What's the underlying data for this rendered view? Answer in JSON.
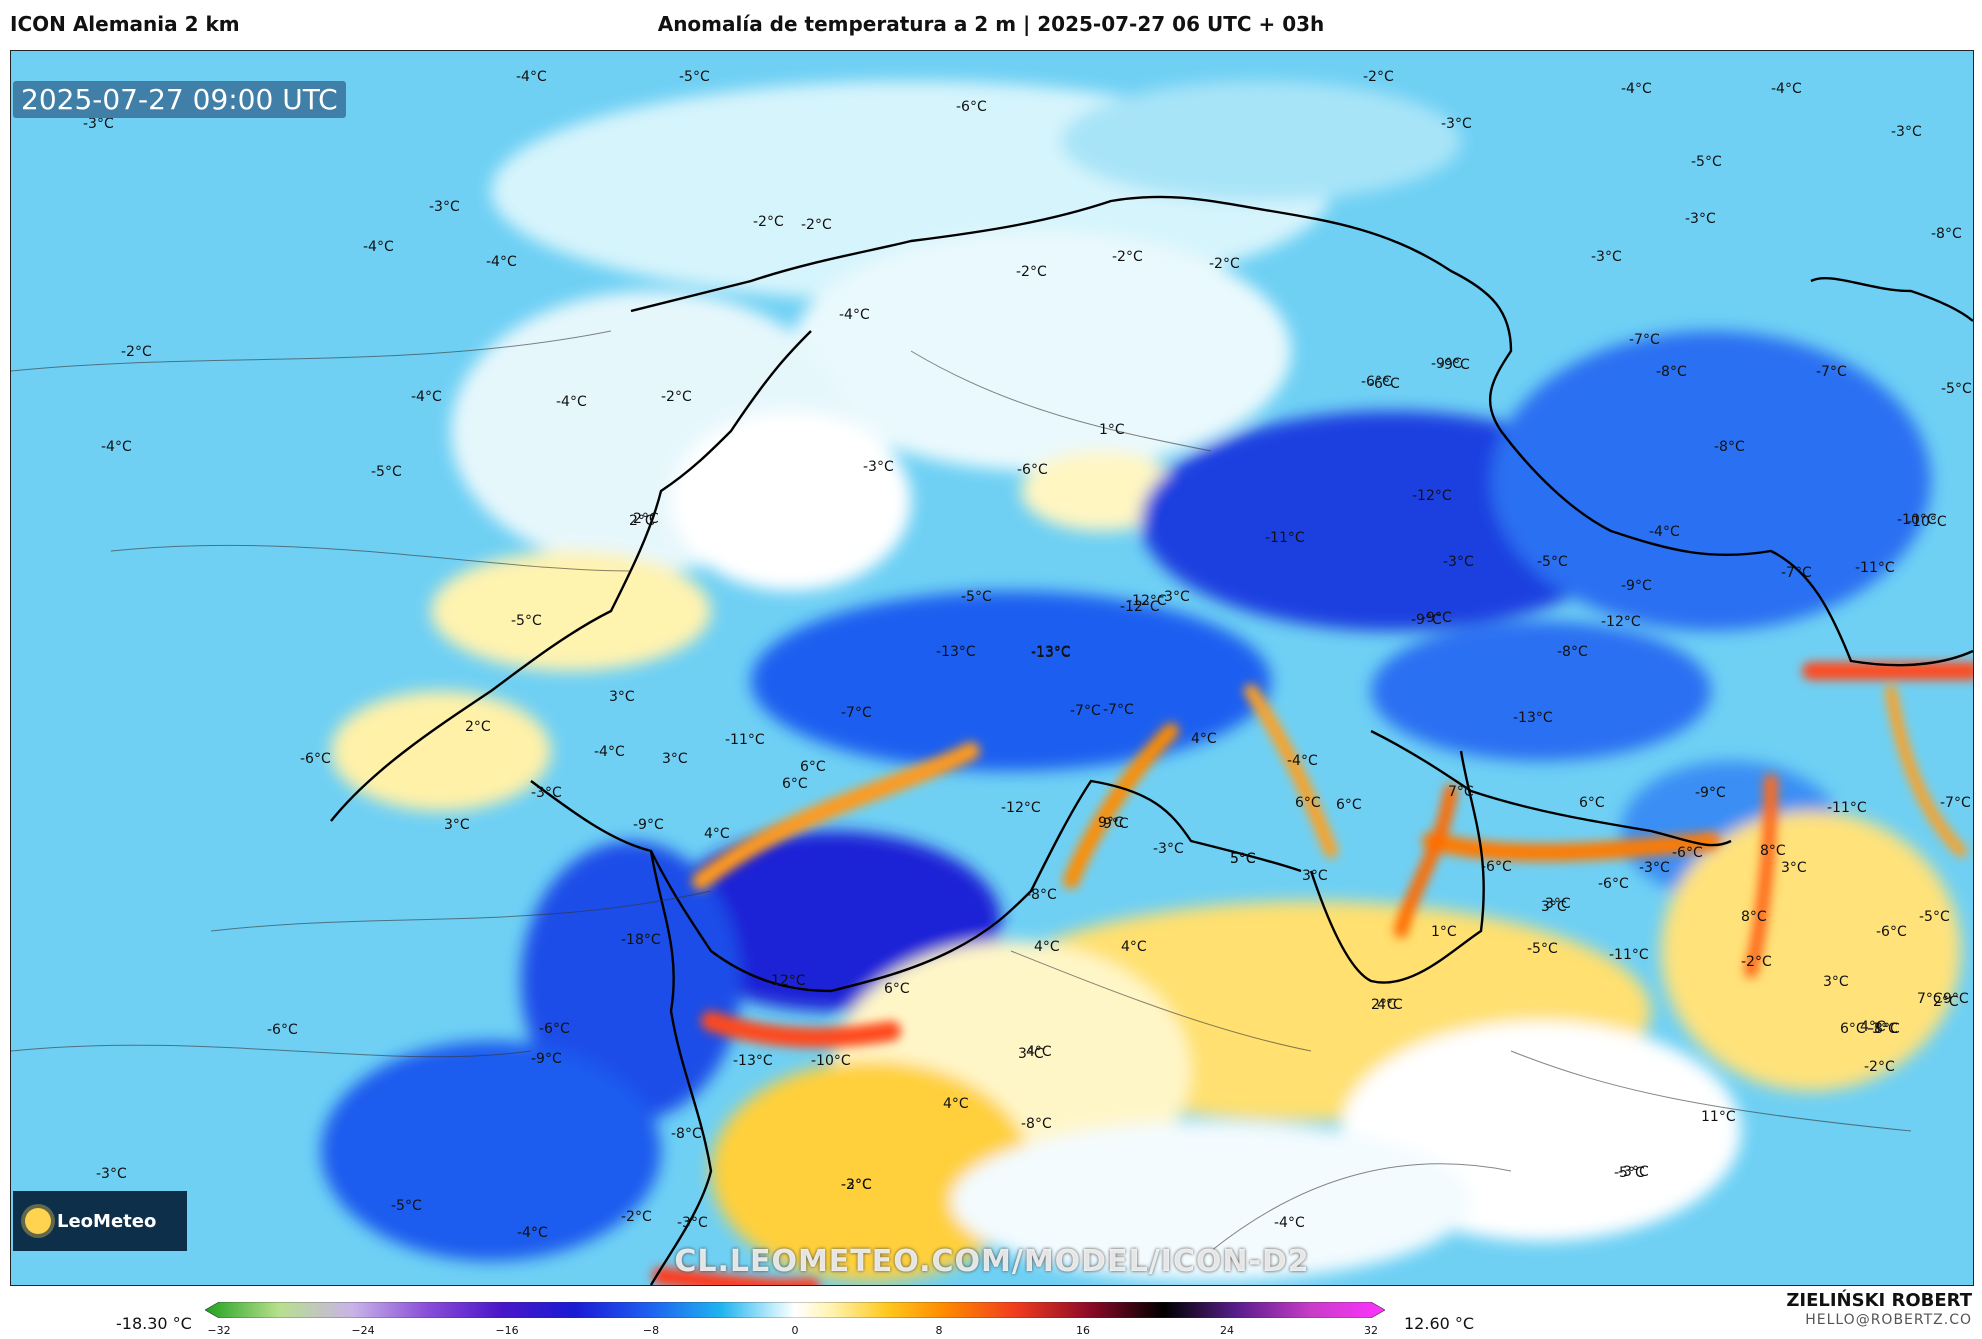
{
  "header": {
    "model": "ICON Alemania 2 km",
    "title": "Anomalía de temperatura a 2 m | 2025-07-27 06 UTC + 03h"
  },
  "map": {
    "timestamp": "2025-07-27 09:00 UTC",
    "logo_text": "LeoMeteo",
    "watermark": "CL.LEOMETEO.COM/MODEL/ICON-D2",
    "labels": [
      "-4°C",
      "-5°C",
      "-3°C",
      "-6°C",
      "-4°C",
      "-2°C",
      "-3°C",
      "-4°C",
      "-9°C",
      "-3°C",
      "-2°C",
      "-3°C",
      "-4°C",
      "-2°C",
      "-2°C",
      "-2°C",
      "-4°C",
      "-6°C",
      "-5°C",
      "-4°C",
      "-3°C",
      "-2°C",
      "-2°C",
      "-3°C",
      "-6°C",
      "-9°C",
      "-7°C",
      "-8°C",
      "-7°C",
      "-8°C",
      "-4°C",
      "-4°C",
      "-4°C",
      "1°C",
      "-8°C",
      "-5°C",
      "-3°C",
      "-5°C",
      "-12°C",
      "-11°C",
      "-10°C",
      "-2°C",
      "2°C",
      "-6°C",
      "-12°C",
      "-13°C",
      "-9°C",
      "-5°C",
      "-9°C",
      "-7°C",
      "-3°C",
      "-5°C",
      "-3°C",
      "-4°C",
      "-11°C",
      "-10°C",
      "-8°C",
      "-9°C",
      "-12°C",
      "-13°C",
      "-11°C",
      "-7°C",
      "6°C",
      "9°C",
      "-7°C",
      "-4°C",
      "5°C",
      "4°C",
      "3°C",
      "2°C",
      "2°C",
      "-6°C",
      "3°C",
      "-4°C",
      "-3°C",
      "6°C",
      "4°C",
      "-12°C",
      "-9°C",
      "-7°C",
      "6°C",
      "6°C",
      "7°C",
      "6°C",
      "-9°C",
      "-11°C",
      "-7°C",
      "3°C",
      "-5°C",
      "-13°C",
      "-12°C",
      "-13°C",
      "9°C",
      "-3°C",
      "5°C",
      "3°C",
      "-6°C",
      "-3°C",
      "-6°C",
      "8°C",
      "3°C",
      "-5°C",
      "-18°C",
      "12°C",
      "6°C",
      "4°C",
      "4°C",
      "1°C",
      "3°C",
      "8°C",
      "-8°C",
      "-6°C",
      "-5°C",
      "3°C",
      "2°C",
      "3°C",
      "4°C",
      "-6°C",
      "-3°C",
      "-11°C",
      "4°C",
      "-9°C",
      "-13°C",
      "-8°C",
      "3°C",
      "2°C",
      "-6°C",
      "-6°C",
      "-2°C",
      "4°C",
      "-10°C",
      "-8°C",
      "-8°C",
      "11°C",
      "4°C",
      "-2°C",
      "-2°C",
      "-5°C",
      "-4°C",
      "-2°C",
      "-3°C",
      "-3°C",
      "-4°C",
      "-5°C",
      "-3°C",
      "-3°C",
      "7°C",
      "6°C",
      "9°C"
    ]
  },
  "colorbar": {
    "min_label": "-18.30 °C",
    "max_label": "12.60 °C",
    "ticks": [
      "−32",
      "−24",
      "−16",
      "−8",
      "0",
      "8",
      "16",
      "24",
      "32"
    ],
    "range": [
      -32,
      32
    ],
    "stops": [
      {
        "v": -32,
        "c": "#1fa21f"
      },
      {
        "v": -28,
        "c": "#b7e08c"
      },
      {
        "v": -24,
        "c": "#c9b3e8"
      },
      {
        "v": -20,
        "c": "#8a4fd8"
      },
      {
        "v": -16,
        "c": "#4b17c8"
      },
      {
        "v": -12,
        "c": "#1a1ad4"
      },
      {
        "v": -8,
        "c": "#1e5ef0"
      },
      {
        "v": -4,
        "c": "#20b4f0"
      },
      {
        "v": -1,
        "c": "#c8f0fc"
      },
      {
        "v": 0,
        "c": "#ffffff"
      },
      {
        "v": 2,
        "c": "#fff3b0"
      },
      {
        "v": 5,
        "c": "#ffc81e"
      },
      {
        "v": 8,
        "c": "#ff8c00"
      },
      {
        "v": 12,
        "c": "#f03c1e"
      },
      {
        "v": 16,
        "c": "#8c0a28"
      },
      {
        "v": 20,
        "c": "#000000"
      },
      {
        "v": 24,
        "c": "#5a1e8c"
      },
      {
        "v": 28,
        "c": "#c83cc8"
      },
      {
        "v": 32,
        "c": "#ff32ff"
      }
    ]
  },
  "credits": {
    "author": "ZIELIŃSKI ROBERT",
    "email": "HELLO@ROBERTZ.CO"
  }
}
